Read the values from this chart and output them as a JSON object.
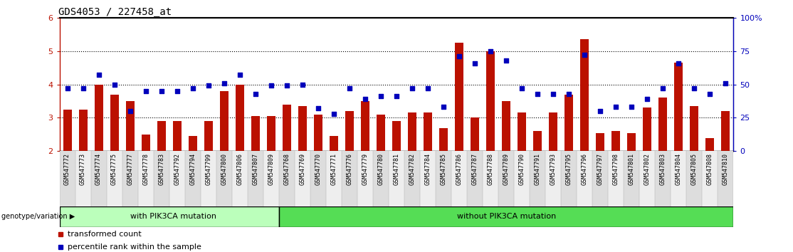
{
  "title": "GDS4053 / 227458_at",
  "samples": [
    "GSM547772",
    "GSM547773",
    "GSM547774",
    "GSM547775",
    "GSM547777",
    "GSM547778",
    "GSM547783",
    "GSM547792",
    "GSM547794",
    "GSM547799",
    "GSM547800",
    "GSM547806",
    "GSM547807",
    "GSM547809",
    "GSM547768",
    "GSM547769",
    "GSM547770",
    "GSM547771",
    "GSM547776",
    "GSM547779",
    "GSM547780",
    "GSM547781",
    "GSM547782",
    "GSM547784",
    "GSM547785",
    "GSM547786",
    "GSM547787",
    "GSM547788",
    "GSM547789",
    "GSM547790",
    "GSM547791",
    "GSM547793",
    "GSM547795",
    "GSM547796",
    "GSM547797",
    "GSM547798",
    "GSM547801",
    "GSM547802",
    "GSM547803",
    "GSM547804",
    "GSM547805",
    "GSM547808",
    "GSM547810"
  ],
  "bar_values": [
    3.25,
    3.25,
    4.0,
    3.7,
    3.5,
    2.5,
    2.9,
    2.9,
    2.45,
    2.9,
    3.8,
    4.0,
    3.05,
    3.05,
    3.4,
    3.35,
    3.1,
    2.45,
    3.2,
    3.5,
    3.1,
    2.9,
    3.15,
    3.15,
    2.7,
    5.25,
    3.0,
    5.0,
    3.5,
    3.15,
    2.6,
    3.15,
    3.7,
    5.35,
    2.55,
    2.6,
    2.55,
    3.3,
    3.6,
    4.65,
    3.35,
    2.4,
    3.2
  ],
  "dot_pct": [
    47,
    47,
    57,
    50,
    30,
    45,
    45,
    45,
    47,
    49,
    51,
    57,
    43,
    49,
    49,
    50,
    32,
    28,
    47,
    39,
    41,
    41,
    47,
    47,
    33,
    71,
    66,
    75,
    68,
    47,
    43,
    43,
    43,
    72,
    30,
    33,
    33,
    39,
    47,
    66,
    47,
    43,
    51
  ],
  "group1_count": 14,
  "group2_count": 29,
  "group1_label": "with PIK3CA mutation",
  "group2_label": "without PIK3CA mutation",
  "group1_color": "#bbffbb",
  "group2_color": "#55dd55",
  "bar_color": "#bb1100",
  "dot_color": "#0000bb",
  "ylim_left": [
    2.0,
    6.0
  ],
  "ylim_right": [
    0,
    100
  ],
  "yticks_left": [
    2,
    3,
    4,
    5,
    6
  ],
  "yticks_right": [
    0,
    25,
    50,
    75,
    100
  ],
  "ytick_labels_right": [
    "0",
    "25",
    "50",
    "75",
    "100%"
  ],
  "hlines": [
    3.0,
    4.0,
    5.0
  ],
  "legend_items": [
    {
      "label": "transformed count",
      "color": "#bb1100"
    },
    {
      "label": "percentile rank within the sample",
      "color": "#0000bb"
    }
  ],
  "genotype_label": "genotype/variation",
  "title_fontsize": 10,
  "tick_fontsize": 8,
  "label_fontsize": 6
}
